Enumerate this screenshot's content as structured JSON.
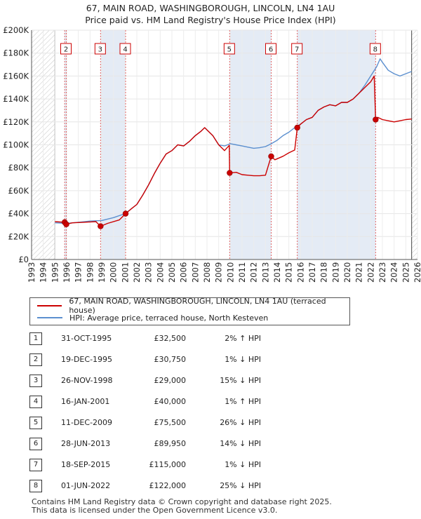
{
  "title_line1": "67, MAIN ROAD, WASHINGBOROUGH, LINCOLN, LN4 1AU",
  "title_line2": "Price paid vs. HM Land Registry's House Price Index (HPI)",
  "legend": {
    "property": "67, MAIN ROAD, WASHINGBOROUGH, LINCOLN, LN4 1AU (terraced house)",
    "hpi": "HPI: Average price, terraced house, North Kesteven"
  },
  "colors": {
    "property": "#cc0000",
    "hpi": "#5b8fcf",
    "shade": "#dde6f3",
    "hatch": "#bbbbbb"
  },
  "chart_data": {
    "type": "line",
    "ylim": [
      0,
      200000
    ],
    "xlim": [
      1993,
      2026
    ],
    "y_ticks": [
      0,
      20000,
      40000,
      60000,
      80000,
      100000,
      120000,
      140000,
      160000,
      180000,
      200000
    ],
    "y_tick_labels": [
      "£0",
      "£20K",
      "£40K",
      "£60K",
      "£80K",
      "£100K",
      "£120K",
      "£140K",
      "£160K",
      "£180K",
      "£200K"
    ],
    "x_ticks": [
      1993,
      1994,
      1995,
      1996,
      1997,
      1998,
      1999,
      2000,
      2001,
      2002,
      2003,
      2004,
      2005,
      2006,
      2007,
      2008,
      2009,
      2010,
      2011,
      2012,
      2013,
      2014,
      2015,
      2016,
      2017,
      2018,
      2019,
      2020,
      2021,
      2022,
      2023,
      2024,
      2025,
      2026
    ],
    "data_start": 1995.0,
    "data_end": 2025.5,
    "series": [
      {
        "name": "67, MAIN ROAD, WASHINGBOROUGH, LINCOLN, LN4 1AU (terraced house)",
        "x": [
          1995.0,
          1995.83,
          1995.97,
          1996.5,
          1997.5,
          1998.5,
          1998.9,
          1999.5,
          2000.5,
          2001.04,
          2001.5,
          2002.0,
          2002.5,
          2003.0,
          2003.5,
          2004.0,
          2004.5,
          2005.0,
          2005.5,
          2006.0,
          2006.5,
          2007.0,
          2007.5,
          2007.8,
          2008.5,
          2009.0,
          2009.5,
          2009.9,
          2009.94,
          2010.5,
          2011.0,
          2011.5,
          2012.0,
          2012.5,
          2013.0,
          2013.49,
          2013.8,
          2014.5,
          2015.0,
          2015.5,
          2015.72,
          2016.0,
          2016.5,
          2017.0,
          2017.5,
          2018.0,
          2018.5,
          2019.0,
          2019.5,
          2020.0,
          2020.5,
          2021.0,
          2021.5,
          2022.0,
          2022.3,
          2022.42,
          2022.6,
          2023.0,
          2023.5,
          2024.0,
          2024.5,
          2025.0,
          2025.5
        ],
        "values": [
          33000,
          32500,
          30750,
          32000,
          32500,
          33000,
          29000,
          31500,
          34500,
          40000,
          44000,
          48000,
          56000,
          65000,
          75000,
          84000,
          92000,
          95000,
          100000,
          99000,
          103000,
          108000,
          112000,
          115000,
          108000,
          100000,
          95000,
          99500,
          75500,
          76000,
          74000,
          73500,
          73000,
          73000,
          73500,
          89950,
          87000,
          90000,
          93000,
          95500,
          115000,
          118000,
          122000,
          124000,
          130000,
          133000,
          135000,
          134000,
          137000,
          137000,
          140000,
          145000,
          150000,
          155000,
          160000,
          122000,
          124000,
          122000,
          121000,
          120000,
          121000,
          122000,
          122500
        ]
      },
      {
        "name": "HPI: Average price, terraced house, North Kesteven",
        "x": [
          1995.0,
          1996.0,
          1997.0,
          1998.0,
          1999.0,
          2000.0,
          2001.0,
          2001.5,
          2002.0,
          2002.5,
          2003.0,
          2003.5,
          2004.0,
          2004.5,
          2005.0,
          2005.5,
          2006.0,
          2006.5,
          2007.0,
          2007.5,
          2007.8,
          2008.5,
          2009.0,
          2009.5,
          2010.0,
          2010.5,
          2011.0,
          2011.5,
          2012.0,
          2012.5,
          2013.0,
          2013.5,
          2014.0,
          2014.5,
          2015.0,
          2015.5,
          2016.0,
          2016.5,
          2017.0,
          2017.5,
          2018.0,
          2018.5,
          2019.0,
          2019.5,
          2020.0,
          2020.5,
          2021.0,
          2021.5,
          2022.0,
          2022.5,
          2022.8,
          2023.0,
          2023.5,
          2024.0,
          2024.5,
          2025.0,
          2025.5
        ],
        "values": [
          32000,
          31500,
          32500,
          33500,
          34000,
          36500,
          40000,
          44000,
          48000,
          56000,
          65000,
          75000,
          84000,
          92000,
          95000,
          100000,
          99000,
          103000,
          108000,
          112000,
          115000,
          108000,
          100000,
          99000,
          101000,
          100000,
          99000,
          98000,
          97000,
          97500,
          98500,
          101000,
          104000,
          108000,
          111000,
          115000,
          118000,
          122000,
          124000,
          130000,
          133000,
          135000,
          134000,
          137000,
          137000,
          140000,
          145000,
          152000,
          160000,
          168000,
          175000,
          172000,
          165000,
          162000,
          160000,
          162000,
          164000
        ]
      }
    ],
    "markers": [
      {
        "label": "1",
        "x": 1995.83,
        "value": 32500
      },
      {
        "label": "2",
        "x": 1995.97,
        "value": 30750
      },
      {
        "label": "3",
        "x": 1998.9,
        "value": 29000
      },
      {
        "label": "4",
        "x": 2001.04,
        "value": 40000
      },
      {
        "label": "5",
        "x": 2009.94,
        "value": 75500
      },
      {
        "label": "6",
        "x": 2013.49,
        "value": 89950
      },
      {
        "label": "7",
        "x": 2015.72,
        "value": 115000
      },
      {
        "label": "8",
        "x": 2022.42,
        "value": 122000
      }
    ],
    "chart_box_labels": [
      "2",
      "3",
      "4",
      "5",
      "6",
      "7",
      "8"
    ],
    "shaded_spans": [
      [
        1995.83,
        1995.97
      ],
      [
        1998.9,
        2001.04
      ],
      [
        2009.94,
        2013.49
      ],
      [
        2015.72,
        2022.42
      ]
    ]
  },
  "transactions": [
    {
      "num": "1",
      "date": "31-OCT-1995",
      "price": "£32,500",
      "hpi": "2% ↑ HPI"
    },
    {
      "num": "2",
      "date": "19-DEC-1995",
      "price": "£30,750",
      "hpi": "1% ↓ HPI"
    },
    {
      "num": "3",
      "date": "26-NOV-1998",
      "price": "£29,000",
      "hpi": "15% ↓ HPI"
    },
    {
      "num": "4",
      "date": "16-JAN-2001",
      "price": "£40,000",
      "hpi": "1% ↑ HPI"
    },
    {
      "num": "5",
      "date": "11-DEC-2009",
      "price": "£75,500",
      "hpi": "26% ↓ HPI"
    },
    {
      "num": "6",
      "date": "28-JUN-2013",
      "price": "£89,950",
      "hpi": "14% ↓ HPI"
    },
    {
      "num": "7",
      "date": "18-SEP-2015",
      "price": "£115,000",
      "hpi": "1% ↓ HPI"
    },
    {
      "num": "8",
      "date": "01-JUN-2022",
      "price": "£122,000",
      "hpi": "25% ↓ HPI"
    }
  ],
  "footer_line1": "Contains HM Land Registry data © Crown copyright and database right 2025.",
  "footer_line2": "This data is licensed under the Open Government Licence v3.0."
}
